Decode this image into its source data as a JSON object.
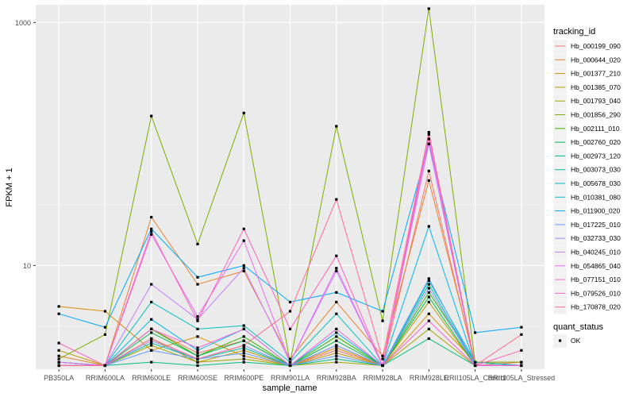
{
  "chart_data": {
    "type": "line",
    "title": "",
    "xlabel": "sample_name",
    "ylabel": "FPKM + 1",
    "y_scale": "log10",
    "ylim": [
      1.4,
      1400
    ],
    "y_ticks": [
      10,
      1000
    ],
    "y_tick_labels": [
      "10",
      "1000"
    ],
    "grid": true,
    "legend_position": "right",
    "categories": [
      "PB350LA",
      "RRIM600LA",
      "RRIM600LE",
      "RRIM600SE",
      "RRIM600PE",
      "RRIM901LA",
      "RRIM928BA",
      "RRIM928LA",
      "RRIM928LE",
      "RRII105LA_Control",
      "RRII105LA_Stressed"
    ],
    "legend": {
      "title": "tracking_id",
      "shape_title": "quant_status",
      "shape_entries": [
        "OK"
      ]
    },
    "series": [
      {
        "name": "Hb_000199_090",
        "color": "#F8766D",
        "values": [
          1.6,
          1.5,
          3.0,
          1.9,
          2.4,
          1.5,
          2.0,
          1.5,
          60,
          1.5,
          1.6
        ]
      },
      {
        "name": "Hb_000644_020",
        "color": "#EA8331",
        "values": [
          1.8,
          1.5,
          25,
          7.0,
          9.0,
          1.7,
          5.0,
          1.8,
          50,
          1.6,
          1.6
        ]
      },
      {
        "name": "Hb_001377_210",
        "color": "#D89000",
        "values": [
          4.6,
          4.2,
          2.0,
          2.6,
          1.8,
          1.5,
          2.1,
          1.5,
          4.0,
          1.6,
          1.5
        ]
      },
      {
        "name": "Hb_001385_070",
        "color": "#C09B00",
        "values": [
          2.0,
          1.5,
          2.5,
          1.6,
          2.0,
          1.5,
          1.9,
          1.5,
          5.0,
          1.5,
          1.5
        ]
      },
      {
        "name": "Hb_001793_040",
        "color": "#A3A500",
        "values": [
          1.5,
          1.5,
          2.2,
          1.6,
          1.7,
          1.5,
          1.6,
          1.5,
          3.0,
          1.5,
          1.5
        ]
      },
      {
        "name": "Hb_001856_290",
        "color": "#7CAE00",
        "values": [
          1.7,
          2.7,
          170,
          15,
          180,
          1.6,
          140,
          3.5,
          1300,
          1.6,
          1.6
        ]
      },
      {
        "name": "Hb_002111_010",
        "color": "#39B600",
        "values": [
          1.5,
          1.5,
          3.0,
          1.8,
          2.6,
          1.5,
          2.6,
          1.5,
          6.0,
          1.6,
          1.5
        ]
      },
      {
        "name": "Hb_002760_020",
        "color": "#00BB4E",
        "values": [
          1.5,
          1.5,
          2.8,
          1.8,
          2.4,
          1.5,
          2.4,
          1.5,
          5.5,
          1.5,
          1.5
        ]
      },
      {
        "name": "Hb_002973_120",
        "color": "#00BF7D",
        "values": [
          1.5,
          1.5,
          1.6,
          1.5,
          1.6,
          1.5,
          1.7,
          1.5,
          2.5,
          1.5,
          1.5
        ]
      },
      {
        "name": "Hb_003073_030",
        "color": "#00C1A3",
        "values": [
          1.6,
          1.5,
          2.3,
          1.7,
          2.1,
          1.5,
          2.2,
          1.5,
          7.0,
          1.5,
          1.5
        ]
      },
      {
        "name": "Hb_005678_030",
        "color": "#00BFC4",
        "values": [
          1.5,
          1.5,
          5.0,
          3.0,
          3.2,
          1.6,
          4.0,
          1.5,
          7.5,
          1.6,
          1.5
        ]
      },
      {
        "name": "Hb_010381_080",
        "color": "#00B8E7",
        "values": [
          1.6,
          1.5,
          3.6,
          2.0,
          3.0,
          1.5,
          2.8,
          1.5,
          21,
          1.5,
          1.5
        ]
      },
      {
        "name": "Hb_011900_020",
        "color": "#00A9FF",
        "values": [
          4.0,
          3.1,
          20,
          8.0,
          10,
          5.0,
          6.0,
          4.2,
          100,
          2.8,
          3.1
        ]
      },
      {
        "name": "Hb_017225_010",
        "color": "#619CFF",
        "values": [
          1.5,
          1.5,
          2.0,
          1.7,
          1.9,
          1.5,
          1.8,
          1.5,
          7.8,
          1.5,
          1.5
        ]
      },
      {
        "name": "Hb_032733_030",
        "color": "#9590FF",
        "values": [
          1.5,
          1.5,
          2.4,
          1.7,
          2.2,
          1.5,
          2.2,
          1.5,
          6.5,
          1.5,
          1.5
        ]
      },
      {
        "name": "Hb_040245_010",
        "color": "#C77CFF",
        "values": [
          1.5,
          1.5,
          7.0,
          3.6,
          9.5,
          1.6,
          9.0,
          1.5,
          100,
          1.5,
          1.5
        ]
      },
      {
        "name": "Hb_054865_040",
        "color": "#E76BF3",
        "values": [
          1.6,
          1.5,
          18,
          3.8,
          16,
          1.6,
          9.5,
          1.5,
          110,
          1.5,
          1.5
        ]
      },
      {
        "name": "Hb_077151_010",
        "color": "#FA62DB",
        "values": [
          1.5,
          1.5,
          3.0,
          2.1,
          3.0,
          1.5,
          3.0,
          1.5,
          3.5,
          1.5,
          1.5
        ]
      },
      {
        "name": "Hb_079526_010",
        "color": "#FF62BC",
        "values": [
          2.3,
          1.5,
          19,
          3.5,
          20,
          3.0,
          12,
          1.5,
          120,
          1.5,
          2.0
        ]
      },
      {
        "name": "Hb_170878_020",
        "color": "#FF6C91",
        "values": [
          1.5,
          1.5,
          2.5,
          1.7,
          2.2,
          4.2,
          35,
          1.7,
          125,
          1.5,
          2.7
        ]
      }
    ]
  }
}
